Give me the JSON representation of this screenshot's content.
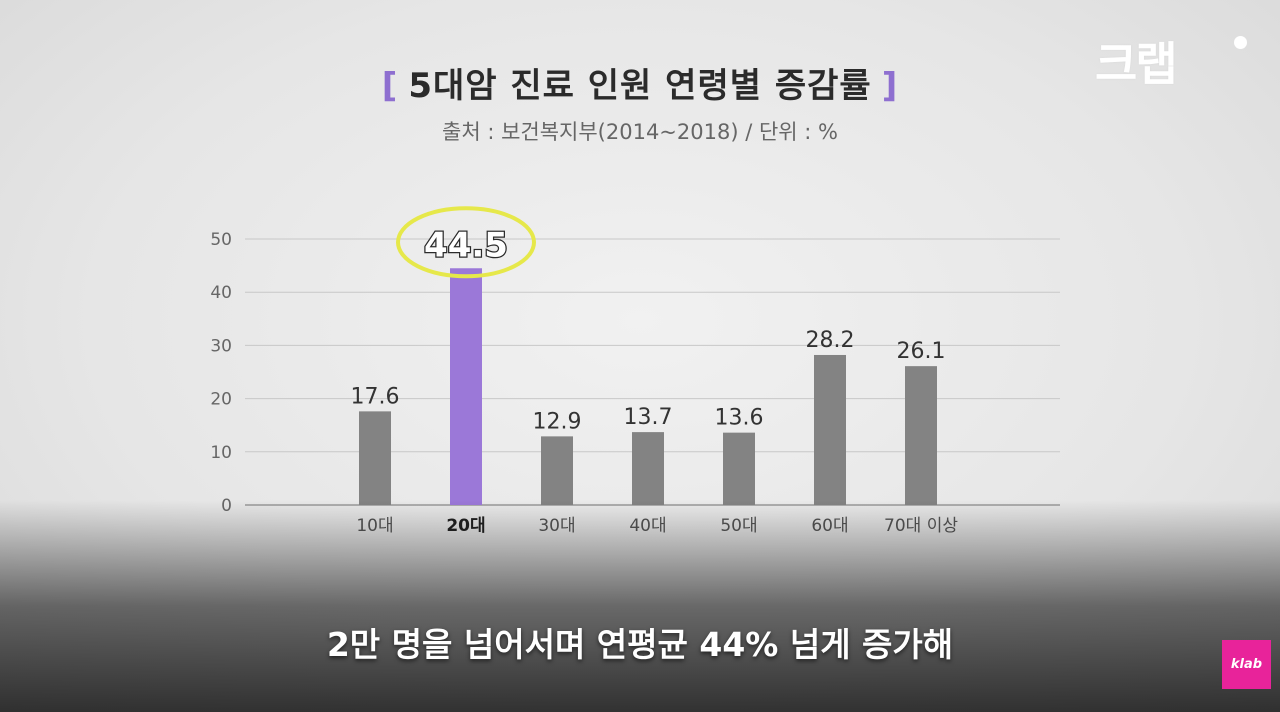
{
  "header": {
    "bracket_left": "[",
    "title": "5대암 진료 인원 연령별 증감률",
    "bracket_right": "]",
    "subtitle": "출처 : 보건복지부(2014~2018) / 단위 : %"
  },
  "logo": {
    "text": "크랩"
  },
  "caption": {
    "text": "2만 명을 넘어서며 연평균 44% 넘게 증가해"
  },
  "badge": {
    "text": "klab"
  },
  "colors": {
    "bar": "#838383",
    "highlight_bar": "#9b78d8",
    "highlight_ring": "#e6e84a",
    "grid": "#c8c8c8"
  },
  "chart_data": {
    "type": "bar",
    "title": "5대암 진료 인원 연령별 증감률",
    "subtitle": "출처 : 보건복지부(2014~2018) / 단위 : %",
    "categories": [
      "10대",
      "20대",
      "30대",
      "40대",
      "50대",
      "60대",
      "70대 이상"
    ],
    "values": [
      17.6,
      44.5,
      12.9,
      13.7,
      13.6,
      28.2,
      26.1
    ],
    "value_labels": [
      "17.6",
      "44.5",
      "12.9",
      "13.7",
      "13.6",
      "28.2",
      "26.1"
    ],
    "highlight_index": 1,
    "ylim": [
      0,
      50
    ],
    "yticks": [
      0,
      10,
      20,
      30,
      40,
      50
    ],
    "xlabel": "",
    "ylabel": "",
    "grid": true,
    "legend": "none"
  }
}
